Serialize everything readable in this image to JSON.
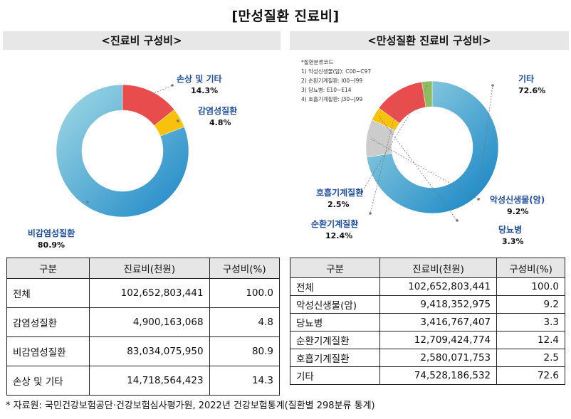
{
  "title": "[만성질환 진료비]",
  "left": {
    "subtitle": "<진료비 구성비>",
    "headers": [
      "구분",
      "진료비(천원)",
      "구성비(%)"
    ],
    "rows": [
      {
        "label": "전체",
        "cost": "102,652,803,441",
        "share": "100.0"
      },
      {
        "label": "감염성질환",
        "cost": "4,900,163,068",
        "share": "4.8"
      },
      {
        "label": "비감염성질환",
        "cost": "83,034,075,950",
        "share": "80.9"
      },
      {
        "label": "손상 및 기타",
        "cost": "14,718,564,423",
        "share": "14.3"
      }
    ]
  },
  "right": {
    "subtitle": "<만성질환 진료비 구성비>",
    "codes": [
      "*질환분류코드",
      "1) 악성신생물(암): C00~C97",
      "2) 순환기계질환: I00~I99",
      "3) 당뇨병: E10~E14",
      "4) 호흡기계질환: J30~J99"
    ],
    "headers": [
      "구분",
      "진료비(천원)",
      "구성비(%)"
    ],
    "rows": [
      {
        "label": "전체",
        "cost": "102,652,803,441",
        "share": "100.0"
      },
      {
        "label": "악성신생물(암)",
        "cost": "9,418,352,975",
        "share": "9.2"
      },
      {
        "label": "당뇨병",
        "cost": "3,416,767,407",
        "share": "3.3"
      },
      {
        "label": "순환기계질환",
        "cost": "12,709,424,774",
        "share": "12.4"
      },
      {
        "label": "호흡기계질환",
        "cost": "2,580,071,753",
        "share": "2.5"
      },
      {
        "label": "기타",
        "cost": "74,528,186,532",
        "share": "72.6"
      }
    ]
  },
  "source": "* 자료원: 국민건강보험공단·건강보험심사평가원, 2022년 건강보험통계(질환별 298분류 통계)",
  "chart_data": [
    {
      "type": "pie",
      "categories": [
        "손상 및 기타",
        "감염성질환",
        "비감염성질환"
      ],
      "values": [
        14.3,
        4.8,
        80.9
      ],
      "value_labels": [
        "14.3%",
        "4.8%",
        "80.9%"
      ],
      "colors": [
        "#e84c4c",
        "#f8c20a",
        "#1c8fcc"
      ],
      "title": "<진료비 구성비>"
    },
    {
      "type": "pie",
      "categories": [
        "기타",
        "악성신생물(암)",
        "당뇨병",
        "순환기계질환",
        "호흡기계질환"
      ],
      "values": [
        72.6,
        9.2,
        3.3,
        12.4,
        2.5
      ],
      "value_labels": [
        "72.6%",
        "9.2%",
        "3.3%",
        "12.4%",
        "2.5%"
      ],
      "colors": [
        "#3aa6d8",
        "#cccccc",
        "#f8c20a",
        "#e84c4c",
        "#8dbb5e"
      ],
      "title": "<만성질환 진료비 구성비>"
    }
  ]
}
